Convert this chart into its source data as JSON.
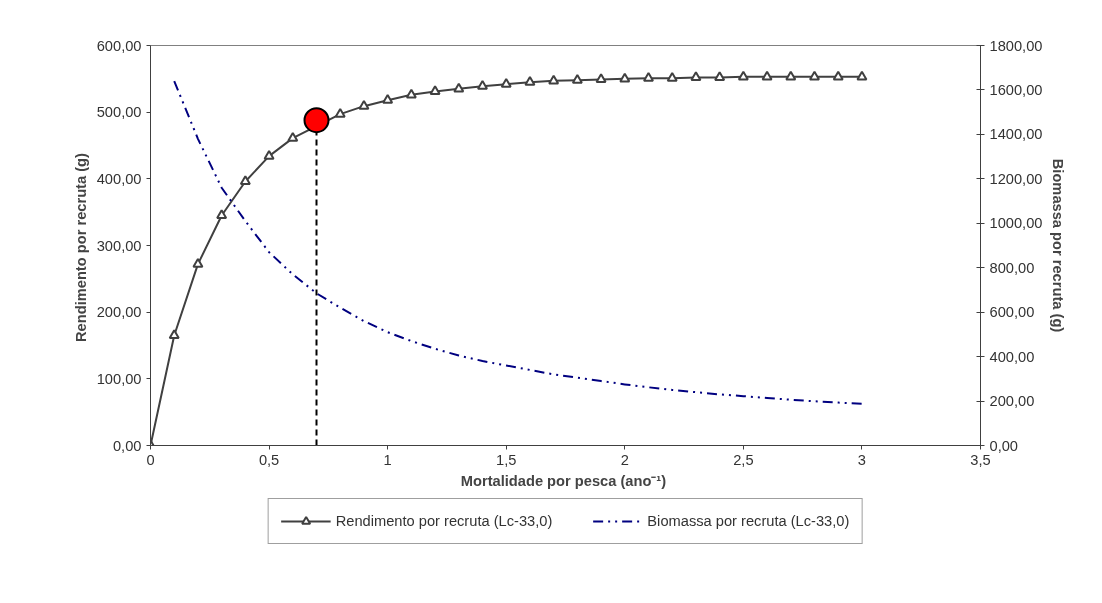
{
  "chart_data": {
    "type": "line",
    "xlabel": "Mortalidade  por pesca (ano⁻¹)",
    "ylabel": "Rendimento  por recruta (g)",
    "y2label": "Biomassa por recruta (g)",
    "xlim": [
      0,
      3.5
    ],
    "xticks": [
      0,
      {
        "value": 0.5,
        "label": "0,5"
      },
      1,
      {
        "value": 1.5,
        "label": "1,5"
      },
      2,
      {
        "value": 2.5,
        "label": "2,5"
      },
      3,
      {
        "value": 3.5,
        "label": "3,5"
      }
    ],
    "ylim": [
      0,
      600
    ],
    "yticks": [
      {
        "value": 0,
        "label": "0,00"
      },
      {
        "value": 100,
        "label": "100,00"
      },
      {
        "value": 200,
        "label": "200,00"
      },
      {
        "value": 300,
        "label": "300,00"
      },
      {
        "value": 400,
        "label": "400,00"
      },
      {
        "value": 500,
        "label": "500,00"
      },
      {
        "value": 600,
        "label": "600,00"
      }
    ],
    "y2lim": [
      0,
      1800
    ],
    "y2ticks": [
      {
        "value": 0,
        "label": "0,00"
      },
      {
        "value": 200,
        "label": "200,00"
      },
      {
        "value": 400,
        "label": "400,00"
      },
      {
        "value": 600,
        "label": "600,00"
      },
      {
        "value": 800,
        "label": "800,00"
      },
      {
        "value": 1000,
        "label": "1000,00"
      },
      {
        "value": 1200,
        "label": "1200,00"
      },
      {
        "value": 1400,
        "label": "1400,00"
      },
      {
        "value": 1600,
        "label": "1600,00"
      },
      {
        "value": 1800,
        "label": "1800,00"
      }
    ],
    "grid": false,
    "legend": "bottom",
    "series": [
      {
        "name": "Rendimento por recruta (Lc-33,0)",
        "color": "#404040",
        "marker": "triangle",
        "line_style": "solid",
        "x": [
          0,
          0.1,
          0.2,
          0.3,
          0.4,
          0.5,
          0.6,
          0.7,
          0.8,
          0.9,
          1.0,
          1.1,
          1.2,
          1.3,
          1.4,
          1.5,
          1.6,
          1.7,
          1.8,
          1.9,
          2.0,
          2.1,
          2.2,
          2.3,
          2.4,
          2.5,
          2.6,
          2.7,
          2.8,
          2.9,
          3.0
        ],
        "values": [
          0,
          165,
          272,
          345,
          396,
          434,
          461,
          null,
          497,
          509,
          518,
          526,
          531,
          535,
          539,
          542,
          545,
          547,
          548,
          549,
          550,
          551,
          551,
          552,
          552,
          553,
          553,
          553,
          553,
          553,
          553
        ]
      },
      {
        "name": "Biomassa por recruta (Lc-33,0)",
        "color": "#000080",
        "marker": "none",
        "line_style": "dashdot",
        "axis": "y2",
        "x": [
          0.1,
          0.2,
          0.3,
          0.4,
          0.5,
          0.6,
          0.7,
          0.8,
          0.9,
          1.0,
          1.1,
          1.2,
          1.3,
          1.4,
          1.5,
          1.6,
          1.7,
          1.8,
          1.9,
          2.0,
          2.1,
          2.2,
          2.3,
          2.4,
          2.5,
          2.6,
          2.7,
          2.8,
          2.9,
          3.0
        ],
        "values": [
          1640,
          1380,
          1160,
          1010,
          870,
          770,
          685,
          620,
          560,
          510,
          470,
          435,
          405,
          380,
          360,
          340,
          320,
          305,
          290,
          275,
          262,
          250,
          240,
          230,
          222,
          214,
          206,
          199,
          193,
          188
        ]
      },
      {
        "type": "line",
        "color": "#000000",
        "marker": "none",
        "line_style": "dashed",
        "x": [
          0.7,
          0.7
        ],
        "values": [
          0,
          488
        ]
      },
      {
        "type": "scatter",
        "color": "#ff0000",
        "marker": "circle",
        "x": [
          0.7
        ],
        "values": [
          488
        ]
      }
    ]
  }
}
